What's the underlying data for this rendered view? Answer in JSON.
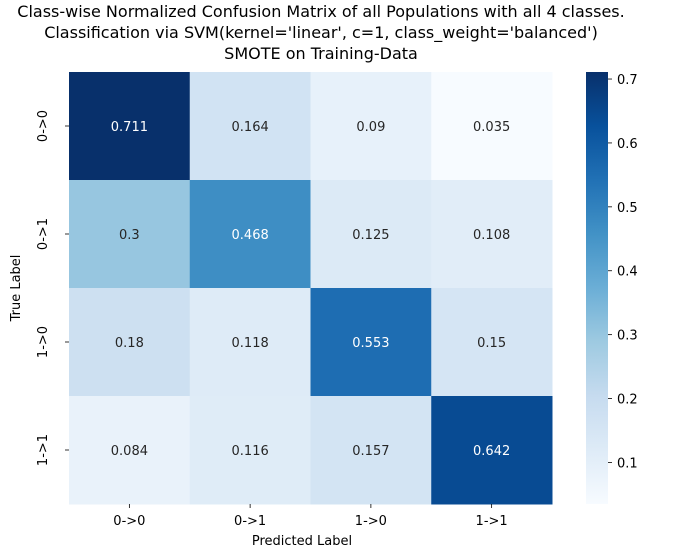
{
  "chart_data": {
    "type": "heatmap",
    "title_lines": [
      "Class-wise Normalized Confusion Matrix of all Populations with all 4 classes.",
      "Classification via SVM(kernel='linear', c=1, class_weight='balanced')",
      "SMOTE on Training-Data"
    ],
    "xlabel": "Predicted Label",
    "ylabel": "True Label",
    "x_categories": [
      "0->0",
      "0->1",
      "1->0",
      "1->1"
    ],
    "y_categories": [
      "0->0",
      "0->1",
      "1->0",
      "1->1"
    ],
    "values": [
      [
        0.711,
        0.164,
        0.09,
        0.035
      ],
      [
        0.3,
        0.468,
        0.125,
        0.108
      ],
      [
        0.18,
        0.118,
        0.553,
        0.15
      ],
      [
        0.084,
        0.116,
        0.157,
        0.642
      ]
    ],
    "value_labels": [
      [
        "0.711",
        "0.164",
        "0.09",
        "0.035"
      ],
      [
        "0.3",
        "0.468",
        "0.125",
        "0.108"
      ],
      [
        "0.18",
        "0.118",
        "0.553",
        "0.15"
      ],
      [
        "0.084",
        "0.116",
        "0.157",
        "0.642"
      ]
    ],
    "colormap": "Blues",
    "color_range": [
      0.035,
      0.711
    ],
    "colorbar_ticks": [
      0.1,
      0.2,
      0.3,
      0.4,
      0.5,
      0.6,
      0.7
    ],
    "colorbar_tick_labels": [
      "0.1",
      "0.2",
      "0.3",
      "0.4",
      "0.5",
      "0.6",
      "0.7"
    ],
    "grid": false
  }
}
